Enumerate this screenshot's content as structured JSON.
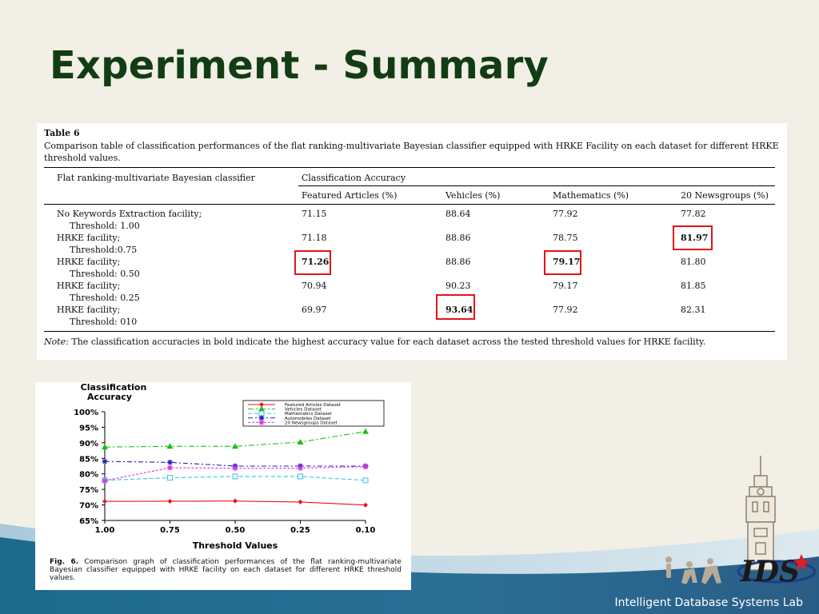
{
  "slide": {
    "title": "Experiment - Summary",
    "footer": "Intelligent Database Systems Lab",
    "logo_text": "IDS",
    "colors": {
      "title": "#123d14",
      "band_dark": "#1d5e80",
      "band_light": "#8fb7cf",
      "highlight": "#e3131b"
    }
  },
  "table": {
    "number": "Table 6",
    "caption": "Comparison table of classification performances of the flat ranking-multivariate Bayesian classifier equipped with HRKE Facility on each dataset for different HRKE threshold values.",
    "header": {
      "row_label": "Flat ranking-multivariate Bayesian classifier",
      "group": "Classification Accuracy",
      "columns": [
        "Featured Articles (%)",
        "Vehicles (%)",
        "Mathematics (%)",
        "20 Newsgroups (%)"
      ]
    },
    "rows": [
      {
        "label": "No Keywords Extraction facility;",
        "sub": "Threshold: 1.00",
        "values": [
          "71.15",
          "88.64",
          "77.92",
          "77.82"
        ]
      },
      {
        "label": "HRKE facility;",
        "sub": "Threshold:0.75",
        "values": [
          "71.18",
          "88.86",
          "78.75",
          "81.97"
        ]
      },
      {
        "label": "HRKE facility;",
        "sub": "Threshold: 0.50",
        "values": [
          "71.26",
          "88.86",
          "79.17",
          "81.80"
        ]
      },
      {
        "label": "HRKE facility;",
        "sub": "Threshold: 0.25",
        "values": [
          "70.94",
          "90.23",
          "79.17",
          "81.85"
        ]
      },
      {
        "label": "HRKE facility;",
        "sub": "Threshold: 010",
        "values": [
          "69.97",
          "93.64",
          "77.92",
          "82.31"
        ]
      }
    ],
    "note_label": "Note",
    "note_text": ": The classification accuracies in bold indicate the highest accuracy value for each dataset across the tested threshold values for HRKE facility."
  },
  "chart_data": {
    "type": "line",
    "title": "Classification Accuracy",
    "xlabel": "Threshold Values",
    "ylabel": "",
    "categories": [
      "1.00",
      "0.75",
      "0.50",
      "0.25",
      "0.10"
    ],
    "ylim": [
      65,
      100
    ],
    "yticks": [
      "100%",
      "95%",
      "90%",
      "85%",
      "80%",
      "75%",
      "70%",
      "65%"
    ],
    "legend_position": "top-right",
    "series": [
      {
        "name": "Featured Articles Dataset",
        "values": [
          71.15,
          71.18,
          71.26,
          70.94,
          69.97
        ],
        "color": "#e3131b",
        "marker": "diamond",
        "dash": ""
      },
      {
        "name": "Vehicles Dataset",
        "values": [
          88.64,
          88.86,
          88.86,
          90.23,
          93.64
        ],
        "color": "#19c219",
        "marker": "triangle",
        "dash": "7,3,2,3"
      },
      {
        "name": "Mathematics Dataset",
        "values": [
          77.92,
          78.75,
          79.17,
          79.17,
          77.92
        ],
        "color": "#2ec8e6",
        "marker": "square",
        "dash": "5,3"
      },
      {
        "name": "Automobiles Dataset",
        "values": [
          84.0,
          83.7,
          82.5,
          82.5,
          82.5
        ],
        "color": "#2222b8",
        "marker": "star",
        "dash": "6,3,2,3"
      },
      {
        "name": "20 Newsgroups Dataset",
        "values": [
          77.82,
          81.97,
          81.8,
          81.85,
          82.31
        ],
        "color": "#e030e0",
        "marker": "star",
        "dash": "3,2"
      }
    ],
    "caption_label": "Fig. 6.",
    "caption": "Comparison graph of classification performances of the flat ranking-multivariate Bayesian classifier equipped with HRKE facility on each dataset for different HRKE threshold values."
  }
}
